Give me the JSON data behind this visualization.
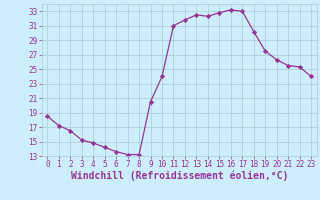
{
  "x": [
    0,
    1,
    2,
    3,
    4,
    5,
    6,
    7,
    8,
    9,
    10,
    11,
    12,
    13,
    14,
    15,
    16,
    17,
    18,
    19,
    20,
    21,
    22,
    23
  ],
  "y": [
    18.5,
    17.2,
    16.5,
    15.2,
    14.8,
    14.2,
    13.6,
    13.2,
    13.2,
    20.5,
    24.0,
    31.0,
    31.8,
    32.5,
    32.3,
    32.8,
    33.2,
    33.0,
    30.2,
    27.5,
    26.3,
    25.5,
    25.3,
    24.0
  ],
  "line_color": "#993399",
  "marker": "D",
  "marker_size": 2.2,
  "xlabel": "Windchill (Refroidissement éolien,°C)",
  "xlim": [
    -0.5,
    23.5
  ],
  "ylim": [
    13,
    34
  ],
  "yticks": [
    13,
    15,
    17,
    19,
    21,
    23,
    25,
    27,
    29,
    31,
    33
  ],
  "xticks": [
    0,
    1,
    2,
    3,
    4,
    5,
    6,
    7,
    8,
    9,
    10,
    11,
    12,
    13,
    14,
    15,
    16,
    17,
    18,
    19,
    20,
    21,
    22,
    23
  ],
  "bg_color": "#cceeff",
  "grid_color": "#aacccc",
  "line_width": 0.9,
  "tick_color": "#993399",
  "label_color": "#993399",
  "tick_fontsize": 5.5,
  "label_fontsize": 7.0
}
